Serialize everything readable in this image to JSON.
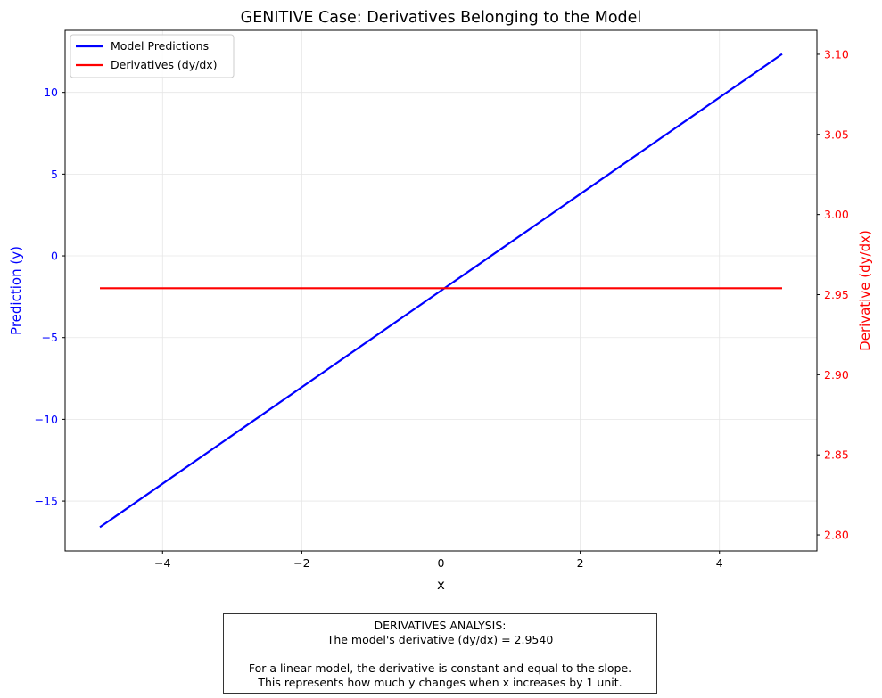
{
  "chart_data": {
    "type": "line",
    "title": "GENITIVE Case: Derivatives Belonging to the Model",
    "xlabel": "x",
    "ylabel": "Prediction (y)",
    "y2label": "Derivative (dy/dx)",
    "xlim": [
      -5.4,
      5.4
    ],
    "ylim": [
      -18.05,
      13.8
    ],
    "y2lim": [
      2.79,
      3.115
    ],
    "xticks": [
      -4,
      -2,
      0,
      2,
      4
    ],
    "yticks": [
      -15,
      -10,
      -5,
      0,
      5,
      10
    ],
    "y2ticks": [
      2.8,
      2.85,
      2.9,
      2.95,
      3.0,
      3.05,
      3.1
    ],
    "grid": true,
    "legend_position": "top-left",
    "series": [
      {
        "name": "Model Predictions",
        "axis": "left",
        "color": "#0000ff",
        "x": [
          -4.9,
          4.9
        ],
        "y": [
          -16.6,
          12.35
        ]
      },
      {
        "name": "Derivatives (dy/dx)",
        "axis": "right",
        "color": "#ff0000",
        "x": [
          -4.9,
          4.9
        ],
        "y": [
          2.954,
          2.954
        ]
      }
    ]
  },
  "note": {
    "line1": "DERIVATIVES ANALYSIS:",
    "line2": "The model's derivative (dy/dx) = 2.9540",
    "line3": "For a linear model, the derivative is constant and equal to the slope.",
    "line4": "This represents how much y changes when x increases by 1 unit."
  }
}
